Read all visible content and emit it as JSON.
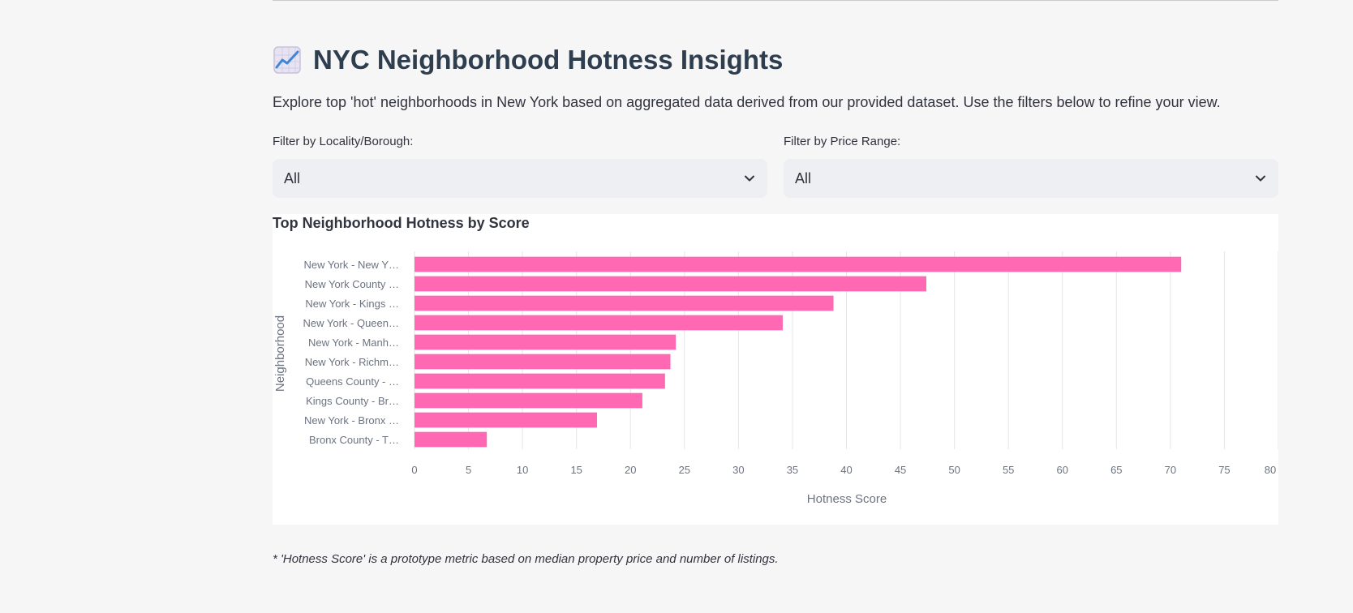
{
  "page": {
    "title": "NYC Neighborhood Hotness Insights",
    "title_icon": "chart-increasing-icon",
    "description": "Explore top 'hot' neighborhoods in New York based on aggregated data derived from our provided dataset. Use the filters below to refine your view.",
    "footnote": "* 'Hotness Score' is a prototype metric based on median property price and number of listings."
  },
  "filters": {
    "locality": {
      "label": "Filter by Locality/Borough:",
      "value": "All"
    },
    "price": {
      "label": "Filter by Price Range:",
      "value": "All"
    }
  },
  "colors": {
    "bar": "#ff69b4",
    "grid": "#e6e6e6",
    "axis_text": "#6c7380"
  },
  "chart_data": {
    "type": "bar",
    "orientation": "horizontal",
    "title": "Top Neighborhood Hotness by Score",
    "xlabel": "Hotness Score",
    "ylabel": "Neighborhood",
    "xlim": [
      0,
      80
    ],
    "xticks": [
      0,
      5,
      10,
      15,
      20,
      25,
      30,
      35,
      40,
      45,
      50,
      55,
      60,
      65,
      70,
      75,
      80
    ],
    "grid": "vertical",
    "categories": [
      "New York - New Y…",
      "New York County …",
      "New York - Kings …",
      "New York - Queen…",
      "New York - Manh…",
      "New York - Richm…",
      "Queens County - …",
      "Kings County - Br…",
      "New York - Bronx …",
      "Bronx County - T…"
    ],
    "values": [
      71,
      47.4,
      38.8,
      34.1,
      24.2,
      23.7,
      23.2,
      21.1,
      16.9,
      6.7
    ]
  }
}
